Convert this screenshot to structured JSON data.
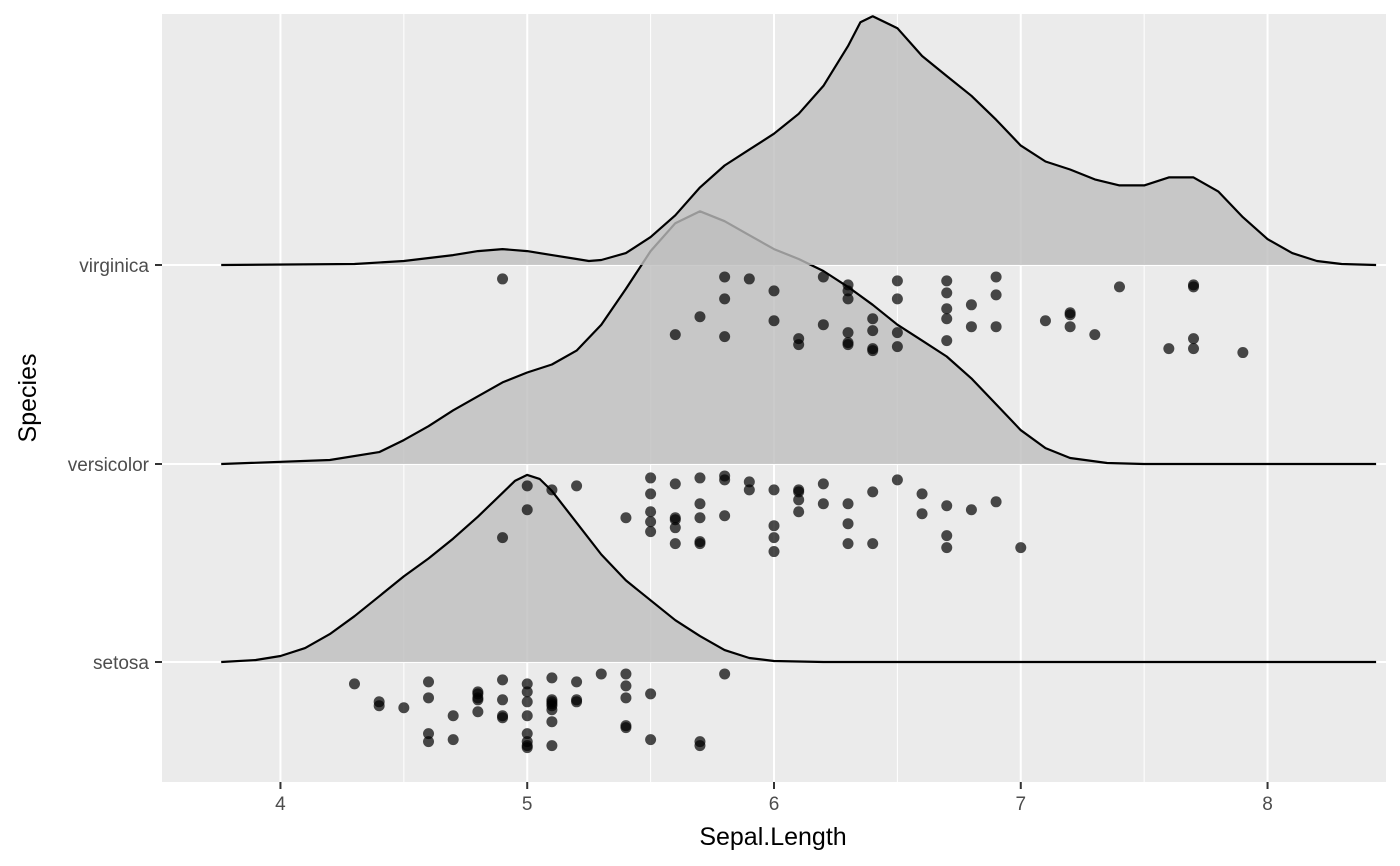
{
  "chart_data": {
    "type": "ridgeline",
    "xlabel": "Sepal.Length",
    "ylabel": "Species",
    "xlim": [
      3.52,
      8.48
    ],
    "x_ticks": [
      4,
      5,
      6,
      7,
      8
    ],
    "x_minor_ticks": [
      3.5,
      4.5,
      5.5,
      6.5,
      7.5,
      8.5
    ],
    "categories": [
      "setosa",
      "versicolor",
      "virginica"
    ],
    "grid": true,
    "legend": "none",
    "colors": {
      "panel": "#ebebeb",
      "grid": "#ffffff",
      "fill": "#bebebe",
      "line": "#000000",
      "point": "#000000"
    },
    "series": [
      {
        "name": "setosa",
        "density": [
          [
            3.76,
            0.0
          ],
          [
            3.9,
            0.01
          ],
          [
            4.0,
            0.03
          ],
          [
            4.1,
            0.07
          ],
          [
            4.2,
            0.14
          ],
          [
            4.3,
            0.23
          ],
          [
            4.4,
            0.33
          ],
          [
            4.5,
            0.43
          ],
          [
            4.6,
            0.52
          ],
          [
            4.7,
            0.62
          ],
          [
            4.8,
            0.73
          ],
          [
            4.9,
            0.85
          ],
          [
            4.95,
            0.91
          ],
          [
            5.0,
            0.94
          ],
          [
            5.05,
            0.92
          ],
          [
            5.1,
            0.86
          ],
          [
            5.2,
            0.7
          ],
          [
            5.3,
            0.54
          ],
          [
            5.4,
            0.41
          ],
          [
            5.5,
            0.31
          ],
          [
            5.6,
            0.21
          ],
          [
            5.7,
            0.13
          ],
          [
            5.8,
            0.06
          ],
          [
            5.9,
            0.02
          ],
          [
            6.0,
            0.005
          ],
          [
            6.2,
            0.0
          ],
          [
            8.44,
            0.0
          ]
        ],
        "points": [
          [
            4.3,
            -0.11
          ],
          [
            4.4,
            -0.2
          ],
          [
            4.4,
            -0.22
          ],
          [
            4.5,
            -0.23
          ],
          [
            4.6,
            -0.1
          ],
          [
            4.6,
            -0.18
          ],
          [
            4.6,
            -0.36
          ],
          [
            4.6,
            -0.4
          ],
          [
            4.7,
            -0.27
          ],
          [
            4.7,
            -0.39
          ],
          [
            4.8,
            -0.15
          ],
          [
            4.8,
            -0.16
          ],
          [
            4.8,
            -0.18
          ],
          [
            4.8,
            -0.19
          ],
          [
            4.8,
            -0.25
          ],
          [
            4.9,
            -0.09
          ],
          [
            4.9,
            -0.19
          ],
          [
            4.9,
            -0.27
          ],
          [
            4.9,
            -0.28
          ],
          [
            5.0,
            -0.11
          ],
          [
            5.0,
            -0.15
          ],
          [
            5.0,
            -0.2
          ],
          [
            5.0,
            -0.27
          ],
          [
            5.0,
            -0.36
          ],
          [
            5.0,
            -0.4
          ],
          [
            5.0,
            -0.42
          ],
          [
            5.0,
            -0.43
          ],
          [
            5.1,
            -0.08
          ],
          [
            5.1,
            -0.19
          ],
          [
            5.1,
            -0.2
          ],
          [
            5.1,
            -0.21
          ],
          [
            5.1,
            -0.22
          ],
          [
            5.1,
            -0.24
          ],
          [
            5.1,
            -0.3
          ],
          [
            5.1,
            -0.42
          ],
          [
            5.2,
            -0.1
          ],
          [
            5.2,
            -0.19
          ],
          [
            5.2,
            -0.2
          ],
          [
            5.3,
            -0.06
          ],
          [
            5.4,
            -0.06
          ],
          [
            5.4,
            -0.12
          ],
          [
            5.4,
            -0.18
          ],
          [
            5.4,
            -0.32
          ],
          [
            5.4,
            -0.33
          ],
          [
            5.5,
            -0.16
          ],
          [
            5.5,
            -0.39
          ],
          [
            5.7,
            -0.4
          ],
          [
            5.7,
            -0.42
          ],
          [
            5.8,
            -0.06
          ]
        ]
      },
      {
        "name": "versicolor",
        "density": [
          [
            3.76,
            0.0
          ],
          [
            4.2,
            0.02
          ],
          [
            4.4,
            0.06
          ],
          [
            4.5,
            0.12
          ],
          [
            4.6,
            0.19
          ],
          [
            4.7,
            0.27
          ],
          [
            4.8,
            0.34
          ],
          [
            4.9,
            0.41
          ],
          [
            5.0,
            0.46
          ],
          [
            5.1,
            0.5
          ],
          [
            5.2,
            0.57
          ],
          [
            5.3,
            0.7
          ],
          [
            5.4,
            0.88
          ],
          [
            5.5,
            1.07
          ],
          [
            5.6,
            1.21
          ],
          [
            5.7,
            1.27
          ],
          [
            5.8,
            1.22
          ],
          [
            5.9,
            1.15
          ],
          [
            6.0,
            1.08
          ],
          [
            6.1,
            1.03
          ],
          [
            6.2,
            0.97
          ],
          [
            6.3,
            0.89
          ],
          [
            6.4,
            0.8
          ],
          [
            6.5,
            0.7
          ],
          [
            6.6,
            0.62
          ],
          [
            6.7,
            0.54
          ],
          [
            6.8,
            0.43
          ],
          [
            6.9,
            0.3
          ],
          [
            7.0,
            0.17
          ],
          [
            7.1,
            0.08
          ],
          [
            7.2,
            0.03
          ],
          [
            7.35,
            0.005
          ],
          [
            7.5,
            0.0
          ],
          [
            8.44,
            0.0
          ]
        ],
        "points": [
          [
            4.9,
            -0.37
          ],
          [
            5.0,
            -0.11
          ],
          [
            5.0,
            -0.23
          ],
          [
            5.1,
            -0.13
          ],
          [
            5.2,
            -0.11
          ],
          [
            5.4,
            -0.27
          ],
          [
            5.5,
            -0.07
          ],
          [
            5.5,
            -0.15
          ],
          [
            5.5,
            -0.24
          ],
          [
            5.5,
            -0.29
          ],
          [
            5.5,
            -0.34
          ],
          [
            5.6,
            -0.1
          ],
          [
            5.6,
            -0.27
          ],
          [
            5.6,
            -0.28
          ],
          [
            5.6,
            -0.32
          ],
          [
            5.6,
            -0.4
          ],
          [
            5.7,
            -0.07
          ],
          [
            5.7,
            -0.2
          ],
          [
            5.7,
            -0.27
          ],
          [
            5.7,
            -0.39
          ],
          [
            5.7,
            -0.4
          ],
          [
            5.8,
            -0.06
          ],
          [
            5.8,
            -0.08
          ],
          [
            5.8,
            -0.26
          ],
          [
            5.9,
            -0.09
          ],
          [
            5.9,
            -0.13
          ],
          [
            6.0,
            -0.13
          ],
          [
            6.0,
            -0.31
          ],
          [
            6.0,
            -0.37
          ],
          [
            6.0,
            -0.44
          ],
          [
            6.1,
            -0.13
          ],
          [
            6.1,
            -0.14
          ],
          [
            6.1,
            -0.18
          ],
          [
            6.1,
            -0.24
          ],
          [
            6.2,
            -0.1
          ],
          [
            6.2,
            -0.2
          ],
          [
            6.3,
            -0.2
          ],
          [
            6.3,
            -0.3
          ],
          [
            6.3,
            -0.4
          ],
          [
            6.4,
            -0.14
          ],
          [
            6.4,
            -0.4
          ],
          [
            6.5,
            -0.08
          ],
          [
            6.6,
            -0.15
          ],
          [
            6.6,
            -0.25
          ],
          [
            6.7,
            -0.21
          ],
          [
            6.7,
            -0.36
          ],
          [
            6.7,
            -0.42
          ],
          [
            6.8,
            -0.23
          ],
          [
            6.9,
            -0.19
          ],
          [
            7.0,
            -0.42
          ]
        ]
      },
      {
        "name": "virginica",
        "density": [
          [
            3.76,
            0.0
          ],
          [
            4.3,
            0.005
          ],
          [
            4.5,
            0.02
          ],
          [
            4.7,
            0.05
          ],
          [
            4.8,
            0.07
          ],
          [
            4.9,
            0.08
          ],
          [
            5.0,
            0.07
          ],
          [
            5.1,
            0.05
          ],
          [
            5.2,
            0.03
          ],
          [
            5.25,
            0.02
          ],
          [
            5.3,
            0.025
          ],
          [
            5.4,
            0.06
          ],
          [
            5.5,
            0.14
          ],
          [
            5.6,
            0.25
          ],
          [
            5.7,
            0.39
          ],
          [
            5.8,
            0.5
          ],
          [
            5.9,
            0.58
          ],
          [
            6.0,
            0.66
          ],
          [
            6.1,
            0.76
          ],
          [
            6.2,
            0.9
          ],
          [
            6.3,
            1.1
          ],
          [
            6.35,
            1.22
          ],
          [
            6.4,
            1.25
          ],
          [
            6.5,
            1.19
          ],
          [
            6.6,
            1.05
          ],
          [
            6.7,
            0.95
          ],
          [
            6.8,
            0.85
          ],
          [
            6.9,
            0.73
          ],
          [
            7.0,
            0.6
          ],
          [
            7.1,
            0.52
          ],
          [
            7.2,
            0.48
          ],
          [
            7.3,
            0.43
          ],
          [
            7.4,
            0.4
          ],
          [
            7.5,
            0.4
          ],
          [
            7.6,
            0.44
          ],
          [
            7.7,
            0.44
          ],
          [
            7.8,
            0.37
          ],
          [
            7.9,
            0.24
          ],
          [
            8.0,
            0.13
          ],
          [
            8.1,
            0.06
          ],
          [
            8.2,
            0.02
          ],
          [
            8.3,
            0.005
          ],
          [
            8.44,
            0.0
          ]
        ],
        "points": [
          [
            4.9,
            -0.07
          ],
          [
            5.6,
            -0.35
          ],
          [
            5.7,
            -0.26
          ],
          [
            5.8,
            -0.06
          ],
          [
            5.8,
            -0.17
          ],
          [
            5.8,
            -0.36
          ],
          [
            5.9,
            -0.07
          ],
          [
            6.0,
            -0.13
          ],
          [
            6.0,
            -0.28
          ],
          [
            6.1,
            -0.37
          ],
          [
            6.1,
            -0.4
          ],
          [
            6.2,
            -0.06
          ],
          [
            6.2,
            -0.3
          ],
          [
            6.3,
            -0.1
          ],
          [
            6.3,
            -0.13
          ],
          [
            6.3,
            -0.17
          ],
          [
            6.3,
            -0.34
          ],
          [
            6.3,
            -0.39
          ],
          [
            6.3,
            -0.4
          ],
          [
            6.4,
            -0.27
          ],
          [
            6.4,
            -0.33
          ],
          [
            6.4,
            -0.42
          ],
          [
            6.4,
            -0.43
          ],
          [
            6.5,
            -0.08
          ],
          [
            6.5,
            -0.17
          ],
          [
            6.5,
            -0.34
          ],
          [
            6.5,
            -0.41
          ],
          [
            6.7,
            -0.08
          ],
          [
            6.7,
            -0.14
          ],
          [
            6.7,
            -0.22
          ],
          [
            6.7,
            -0.27
          ],
          [
            6.7,
            -0.38
          ],
          [
            6.8,
            -0.2
          ],
          [
            6.8,
            -0.31
          ],
          [
            6.9,
            -0.06
          ],
          [
            6.9,
            -0.15
          ],
          [
            6.9,
            -0.31
          ],
          [
            7.1,
            -0.28
          ],
          [
            7.2,
            -0.24
          ],
          [
            7.2,
            -0.25
          ],
          [
            7.2,
            -0.31
          ],
          [
            7.3,
            -0.35
          ],
          [
            7.4,
            -0.11
          ],
          [
            7.6,
            -0.42
          ],
          [
            7.7,
            -0.1
          ],
          [
            7.7,
            -0.11
          ],
          [
            7.7,
            -0.37
          ],
          [
            7.7,
            -0.42
          ],
          [
            7.9,
            -0.44
          ]
        ]
      }
    ]
  }
}
